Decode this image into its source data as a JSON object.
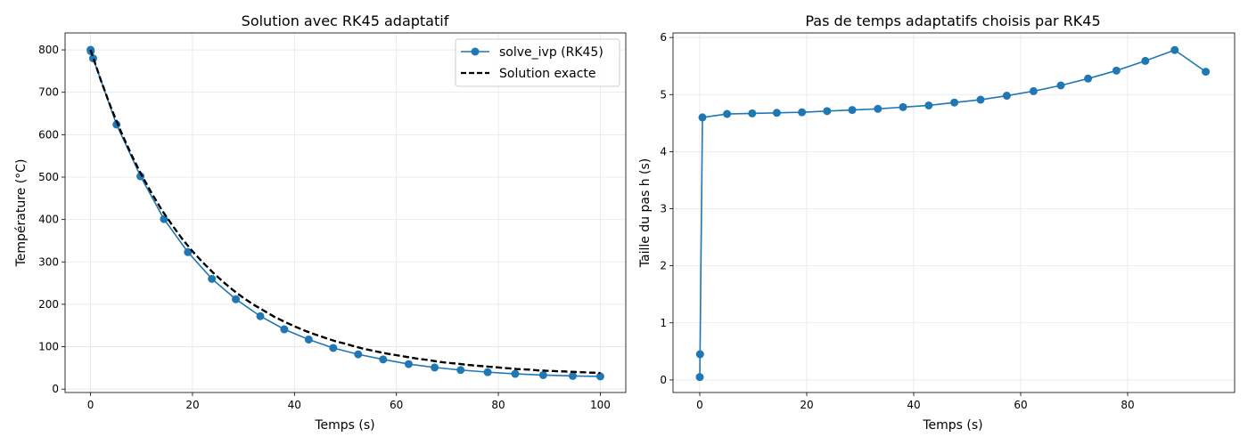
{
  "colors": {
    "series": "#1f77b4",
    "exact": "#000000",
    "grid": "#e6e6e6"
  },
  "chart_data": [
    {
      "type": "line",
      "title": "Solution avec RK45 adaptatif",
      "xlabel": "Temps (s)",
      "ylabel": "Température (°C)",
      "xlim": [
        -5,
        105
      ],
      "ylim": [
        -8,
        840
      ],
      "xticks": [
        0,
        20,
        40,
        60,
        80,
        100
      ],
      "yticks": [
        0,
        100,
        200,
        300,
        400,
        500,
        600,
        700,
        800
      ],
      "grid": true,
      "legend": "top-right",
      "series": [
        {
          "name": "solve_ivp (RK45)",
          "style": "line-markers",
          "x": [
            0,
            0.05,
            0.5,
            5.1,
            9.8,
            14.4,
            19.1,
            23.8,
            28.5,
            33.3,
            38.0,
            42.8,
            47.6,
            52.5,
            57.4,
            62.4,
            67.5,
            72.6,
            77.9,
            83.3,
            88.8,
            94.6,
            100
          ],
          "y": [
            800,
            797,
            780,
            624,
            502,
            401,
            323,
            260,
            212,
            172,
            141,
            117,
            97,
            82,
            70,
            59,
            51,
            45,
            40,
            36,
            33,
            31,
            30
          ]
        },
        {
          "name": "Solution exacte",
          "style": "dashed",
          "x": [
            0,
            2,
            4,
            6,
            8,
            10,
            12,
            14,
            16,
            18,
            20,
            22,
            24,
            26,
            28,
            30,
            32,
            34,
            36,
            38,
            40,
            42,
            44,
            46,
            48,
            50,
            52,
            54,
            56,
            58,
            60,
            62,
            64,
            66,
            68,
            70,
            72,
            74,
            76,
            78,
            80,
            82,
            84,
            86,
            88,
            90,
            92,
            94,
            96,
            98,
            100
          ],
          "y": [
            800,
            729,
            664,
            606,
            553,
            505,
            462,
            422,
            387,
            354,
            325,
            299,
            275,
            253,
            233,
            215,
            199,
            185,
            171,
            159,
            148,
            138,
            129,
            121,
            113,
            107,
            100,
            94,
            89,
            84,
            80,
            76,
            72,
            69,
            65,
            62,
            60,
            57,
            55,
            53,
            51,
            49,
            47,
            46,
            44,
            43,
            42,
            41,
            40,
            39,
            38
          ]
        }
      ]
    },
    {
      "type": "line",
      "title": "Pas de temps adaptatifs choisis par RK45",
      "xlabel": "Temps (s)",
      "ylabel": "Taille du pas h (s)",
      "xlim": [
        -5,
        100
      ],
      "ylim": [
        -0.22,
        6.08
      ],
      "xticks": [
        0,
        20,
        40,
        60,
        80
      ],
      "yticks": [
        0,
        1,
        2,
        3,
        4,
        5,
        6
      ],
      "grid": true,
      "series": [
        {
          "style": "line-markers",
          "x": [
            0,
            0.05,
            0.5,
            5.1,
            9.8,
            14.4,
            19.1,
            23.8,
            28.5,
            33.3,
            38.0,
            42.8,
            47.6,
            52.5,
            57.4,
            62.4,
            67.5,
            72.6,
            77.9,
            83.3,
            88.8,
            94.6
          ],
          "y": [
            0.05,
            0.45,
            4.6,
            4.66,
            4.67,
            4.68,
            4.69,
            4.71,
            4.73,
            4.75,
            4.78,
            4.81,
            4.86,
            4.91,
            4.98,
            5.06,
            5.16,
            5.28,
            5.42,
            5.59,
            5.78,
            5.4
          ]
        }
      ]
    }
  ]
}
